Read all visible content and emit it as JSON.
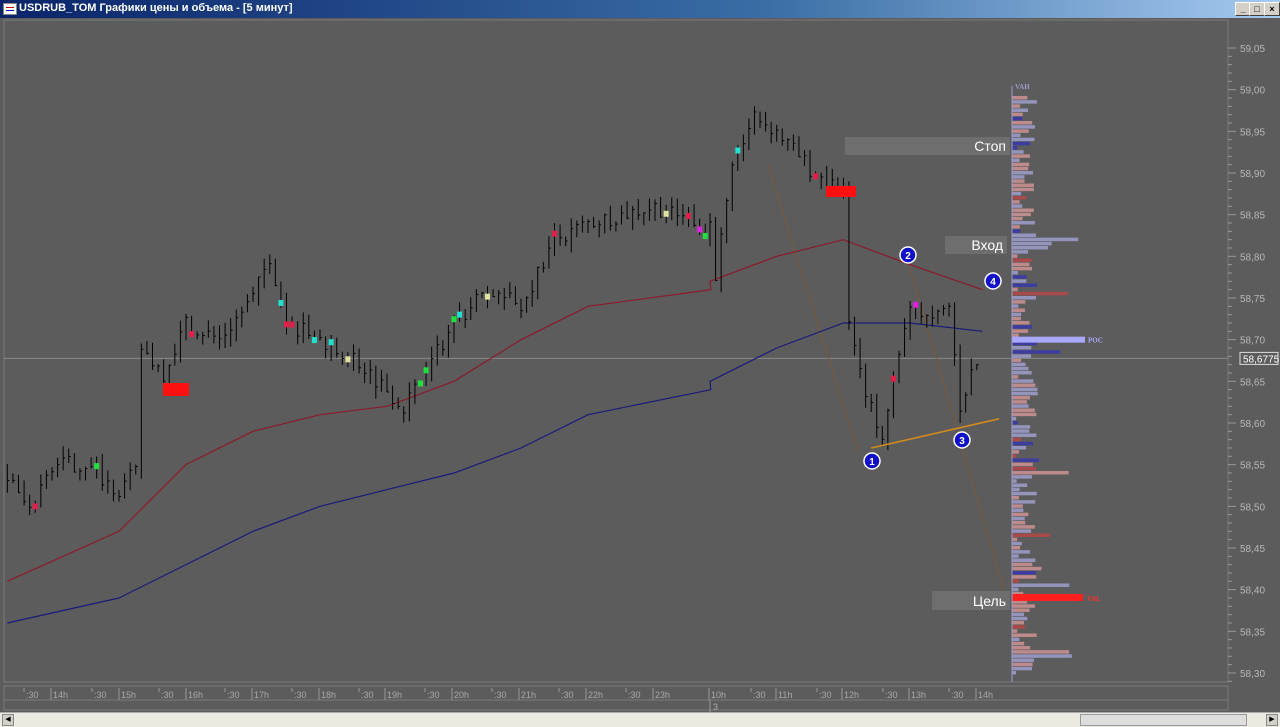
{
  "window": {
    "title": "USDRUB_TOM Графики цены и объема - [5 минут]",
    "minimize": "_",
    "maximize": "□",
    "close": "×"
  },
  "annotations": {
    "stop": "Стоп",
    "entry": "Вход",
    "target": "Цель",
    "points": [
      "1",
      "2",
      "3",
      "4"
    ]
  },
  "colors": {
    "background": "#5c5c5c",
    "bars": "#000000",
    "ma_red": "#8b1a2a",
    "ma_blue": "#1a1a7a",
    "trendline": "#d08a20",
    "poc": "#a8a8ff",
    "val": "#ff2020"
  },
  "chart_data": {
    "type": "ohlc",
    "timeframe": "5 минут",
    "ylim": [
      58.28,
      59.07
    ],
    "y_ticks": [
      "59,05",
      "59,00",
      "58,95",
      "58,90",
      "58,85",
      "58,80",
      "58,75",
      "58,70",
      "58,65",
      "58,60",
      "58,55",
      "58,50",
      "58,45",
      "58,40",
      "58,35",
      "58,30"
    ],
    "x_ticks": [
      ":30",
      "14h",
      ":30",
      "15h",
      ":30",
      "16h",
      ":30",
      "17h",
      ":30",
      "18h",
      ":30",
      "19h",
      ":30",
      "20h",
      ":30",
      "21h",
      ":30",
      "22h",
      ":30",
      "23h",
      "10h",
      ":30",
      "11h",
      ":30",
      "12h",
      ":30",
      "13h",
      ":30",
      "14h"
    ],
    "date_label": "3",
    "last_price": "58,6775",
    "price_path": [
      [
        "1",
        "13:20",
        58.54
      ],
      [
        "1",
        "13:40",
        58.49
      ],
      [
        "1",
        "14:00",
        58.55
      ],
      [
        "1",
        "14:30",
        58.55
      ],
      [
        "1",
        "15:00",
        58.52
      ],
      [
        "1",
        "15:15",
        58.54
      ],
      [
        "1",
        "15:20",
        58.69
      ],
      [
        "1",
        "15:40",
        58.66
      ],
      [
        "1",
        "16:00",
        58.72
      ],
      [
        "1",
        "16:30",
        58.7
      ],
      [
        "1",
        "17:00",
        58.75
      ],
      [
        "1",
        "17:15",
        58.8
      ],
      [
        "1",
        "17:30",
        58.72
      ],
      [
        "1",
        "18:00",
        58.7
      ],
      [
        "1",
        "18:30",
        58.68
      ],
      [
        "1",
        "19:00",
        58.64
      ],
      [
        "1",
        "19:15",
        58.62
      ],
      [
        "1",
        "19:30",
        58.65
      ],
      [
        "1",
        "20:00",
        58.72
      ],
      [
        "1",
        "20:30",
        58.76
      ],
      [
        "1",
        "21:00",
        58.74
      ],
      [
        "1",
        "21:15",
        58.78
      ],
      [
        "1",
        "21:30",
        58.82
      ],
      [
        "1",
        "22:00",
        58.84
      ],
      [
        "1",
        "22:30",
        58.85
      ],
      [
        "1",
        "23:00",
        58.86
      ],
      [
        "1",
        "23:50",
        58.83
      ],
      [
        "2",
        "10:00",
        58.84
      ],
      [
        "2",
        "10:05",
        58.78
      ],
      [
        "2",
        "10:20",
        58.9
      ],
      [
        "2",
        "10:40",
        58.97
      ],
      [
        "2",
        "11:00",
        58.95
      ],
      [
        "2",
        "11:20",
        58.92
      ],
      [
        "2",
        "11:40",
        58.89
      ],
      [
        "2",
        "12:00",
        58.88
      ],
      [
        "2",
        "12:05",
        58.73
      ],
      [
        "2",
        "12:20",
        58.63
      ],
      [
        "2",
        "12:35",
        58.59
      ],
      [
        "2",
        "12:45",
        58.66
      ],
      [
        "2",
        "13:00",
        58.74
      ],
      [
        "2",
        "13:20",
        58.72
      ],
      [
        "2",
        "13:35",
        58.74
      ],
      [
        "2",
        "13:45",
        58.62
      ],
      [
        "2",
        "13:55",
        58.66
      ],
      [
        "2",
        "14:05",
        58.68
      ]
    ],
    "series": [
      {
        "type": "line",
        "color": "#8b1a2a",
        "points": [
          [
            "1",
            "13:20",
            58.41
          ],
          [
            "1",
            "15:00",
            58.47
          ],
          [
            "1",
            "16:00",
            58.55
          ],
          [
            "1",
            "17:00",
            58.59
          ],
          [
            "1",
            "18:00",
            58.61
          ],
          [
            "1",
            "19:00",
            58.62
          ],
          [
            "1",
            "20:00",
            58.65
          ],
          [
            "1",
            "21:00",
            58.7
          ],
          [
            "1",
            "22:00",
            58.74
          ],
          [
            "1",
            "23:50",
            58.76
          ],
          [
            "2",
            "10:00",
            58.77
          ],
          [
            "2",
            "11:00",
            58.8
          ],
          [
            "2",
            "12:00",
            58.82
          ],
          [
            "2",
            "13:00",
            58.79
          ],
          [
            "2",
            "14:05",
            58.76
          ]
        ]
      },
      {
        "type": "line",
        "color": "#1a1a7a",
        "points": [
          [
            "1",
            "13:20",
            58.36
          ],
          [
            "1",
            "15:00",
            58.39
          ],
          [
            "1",
            "16:00",
            58.43
          ],
          [
            "1",
            "17:00",
            58.47
          ],
          [
            "1",
            "18:00",
            58.5
          ],
          [
            "1",
            "19:00",
            58.52
          ],
          [
            "1",
            "20:00",
            58.54
          ],
          [
            "1",
            "21:00",
            58.57
          ],
          [
            "1",
            "22:00",
            58.61
          ],
          [
            "1",
            "23:50",
            58.64
          ],
          [
            "2",
            "10:00",
            58.65
          ],
          [
            "2",
            "11:00",
            58.69
          ],
          [
            "2",
            "12:00",
            58.72
          ],
          [
            "2",
            "13:00",
            58.72
          ],
          [
            "2",
            "14:05",
            58.71
          ]
        ]
      }
    ],
    "volume_profile": {
      "labels": {
        "vah": "VAH",
        "poc": "POC",
        "val": "VAL"
      },
      "vah": 58.995,
      "poc": 58.7,
      "val": 58.39,
      "range": [
        58.3,
        58.995
      ]
    },
    "levels": {
      "stop": 58.935,
      "entry": 58.82,
      "target": 58.39
    },
    "trendline": [
      [
        "2",
        "12:25",
        58.57
      ],
      [
        "2",
        "14:20",
        58.605
      ]
    ]
  }
}
